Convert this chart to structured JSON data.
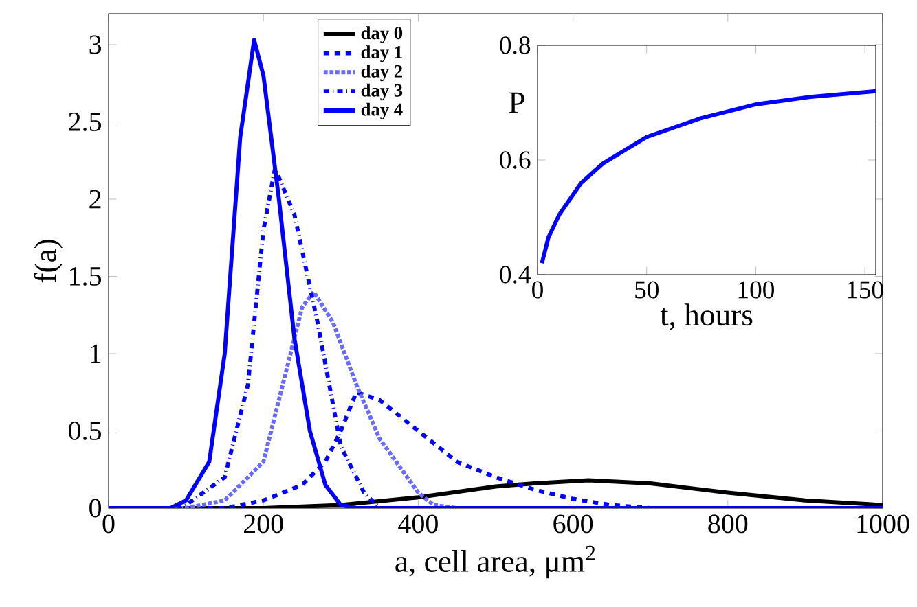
{
  "chart_data": [
    {
      "type": "line",
      "xlabel": "a, cell area, μm$^{2}$",
      "ylabel": "f(a)",
      "xlim": [
        0,
        1000
      ],
      "ylim": [
        0,
        3.2
      ],
      "xticks": [
        0,
        200,
        400,
        600,
        800,
        1000
      ],
      "yticks": [
        0,
        0.5,
        1,
        1.5,
        2,
        2.5,
        3
      ],
      "legend": "top",
      "grid": false,
      "series": [
        {
          "name": "day 0",
          "color": "#000000",
          "line_style": "solid",
          "x": [
            0,
            200,
            300,
            400,
            500,
            550,
            620,
            700,
            800,
            900,
            1000
          ],
          "values": [
            0,
            0,
            0.02,
            0.07,
            0.14,
            0.16,
            0.18,
            0.16,
            0.1,
            0.05,
            0.02
          ]
        },
        {
          "name": "day 1",
          "color": "#0000ff",
          "line_style": "dashed",
          "x": [
            0,
            150,
            200,
            250,
            280,
            300,
            320,
            350,
            400,
            450,
            500,
            550,
            600,
            650,
            700,
            1000
          ],
          "values": [
            0,
            0,
            0.05,
            0.15,
            0.3,
            0.5,
            0.75,
            0.7,
            0.5,
            0.3,
            0.2,
            0.12,
            0.06,
            0.02,
            0,
            0
          ]
        },
        {
          "name": "day 2",
          "color": "#6a6aff",
          "line_style": "dotted",
          "x": [
            0,
            100,
            150,
            200,
            230,
            250,
            265,
            290,
            320,
            350,
            400,
            420,
            450,
            1000
          ],
          "values": [
            0,
            0,
            0.05,
            0.3,
            0.9,
            1.3,
            1.4,
            1.2,
            0.8,
            0.45,
            0.1,
            0.02,
            0,
            0
          ]
        },
        {
          "name": "day 3",
          "color": "#0000ff",
          "line_style": "dashdot",
          "x": [
            0,
            90,
            100,
            150,
            180,
            200,
            215,
            240,
            270,
            300,
            330,
            350,
            1000
          ],
          "values": [
            0,
            0,
            0.02,
            0.2,
            0.8,
            1.8,
            2.2,
            1.9,
            1.2,
            0.4,
            0.1,
            0,
            0
          ]
        },
        {
          "name": "day 4",
          "color": "#0000ff",
          "line_style": "solid",
          "x": [
            0,
            80,
            100,
            130,
            150,
            170,
            188,
            200,
            220,
            240,
            260,
            280,
            300,
            320,
            1000
          ],
          "values": [
            0,
            0,
            0.05,
            0.3,
            1.0,
            2.4,
            3.03,
            2.8,
            2.0,
            1.1,
            0.5,
            0.15,
            0.02,
            0,
            0
          ]
        }
      ]
    },
    {
      "type": "line",
      "xlabel": "t, hours",
      "ylabel": "P",
      "xlim": [
        0,
        155
      ],
      "ylim": [
        0.4,
        0.8
      ],
      "xticks": [
        0,
        50,
        100,
        150
      ],
      "yticks": [
        0.4,
        0.6,
        0.8
      ],
      "legend": false,
      "grid": false,
      "series": [
        {
          "color": "#0000ff",
          "line_style": "solid",
          "x": [
            2,
            5,
            10,
            20,
            30,
            50,
            75,
            100,
            125,
            155
          ],
          "values": [
            0.42,
            0.465,
            0.505,
            0.56,
            0.594,
            0.64,
            0.673,
            0.697,
            0.71,
            0.72
          ]
        }
      ]
    }
  ]
}
